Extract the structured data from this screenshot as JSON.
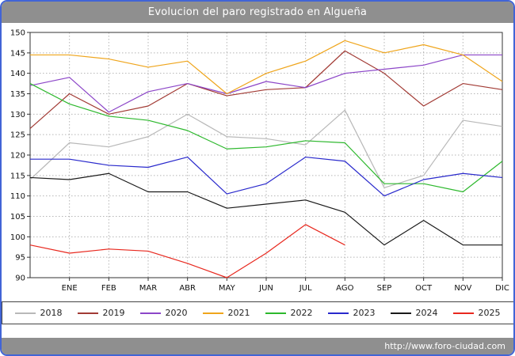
{
  "frame": {
    "border_color": "#4164d6",
    "bar_color": "#8f8f8f"
  },
  "header": {
    "title": "Evolucion del paro registrado en Algueña"
  },
  "footer": {
    "url": "http://www.foro-ciudad.com"
  },
  "chart_data": {
    "type": "line",
    "title": "Evolucion del paro registrado en Algueña",
    "xlabel": "",
    "ylabel": "",
    "ylim": [
      90,
      150
    ],
    "ytick_step": 5,
    "grid": true,
    "legend_position": "bottom",
    "months": [
      "ENE",
      "FEB",
      "MAR",
      "ABR",
      "MAY",
      "JUN",
      "JUL",
      "AGO",
      "SEP",
      "OCT",
      "NOV",
      "DIC"
    ],
    "note": "Each series has a starting point plotted at the left axis before ENE",
    "series": [
      {
        "name": "2018",
        "color": "#b8b8b8",
        "values": [
          114,
          123,
          122,
          124.5,
          130,
          124.5,
          124,
          122.5,
          131,
          112,
          115,
          128.5,
          127
        ]
      },
      {
        "name": "2019",
        "color": "#a23b35",
        "values": [
          126.5,
          135,
          130,
          132,
          137.5,
          134.5,
          136,
          136.5,
          145.5,
          140,
          132,
          137.5,
          136
        ]
      },
      {
        "name": "2020",
        "color": "#8c46c8",
        "values": [
          137,
          139,
          130.5,
          135.5,
          137.5,
          135,
          138,
          136.5,
          140,
          141,
          142,
          144.5,
          144.5
        ]
      },
      {
        "name": "2021",
        "color": "#efa51c",
        "values": [
          144.5,
          144.5,
          143.5,
          141.5,
          143,
          135,
          140,
          143,
          148,
          145,
          147,
          144.5,
          138
        ]
      },
      {
        "name": "2022",
        "color": "#2db82d",
        "values": [
          137.5,
          132.5,
          129.5,
          128.5,
          126,
          121.5,
          122,
          123.5,
          123,
          113,
          113,
          111,
          118.5
        ]
      },
      {
        "name": "2023",
        "color": "#2929cc",
        "values": [
          119,
          119,
          117.5,
          117,
          119.5,
          110.5,
          113,
          119.5,
          118.5,
          110,
          114,
          115.5,
          114.5
        ]
      },
      {
        "name": "2024",
        "color": "#1a1a1a",
        "values": [
          114.5,
          114,
          115.5,
          111,
          111,
          107,
          108,
          109,
          106,
          98,
          104,
          98,
          98
        ]
      },
      {
        "name": "2025",
        "color": "#e8281e",
        "values": [
          98,
          96,
          97,
          96.5,
          93.5,
          90,
          96,
          103,
          98
        ]
      }
    ]
  },
  "legend": {
    "items": [
      "2018",
      "2019",
      "2020",
      "2021",
      "2022",
      "2023",
      "2024",
      "2025"
    ]
  }
}
